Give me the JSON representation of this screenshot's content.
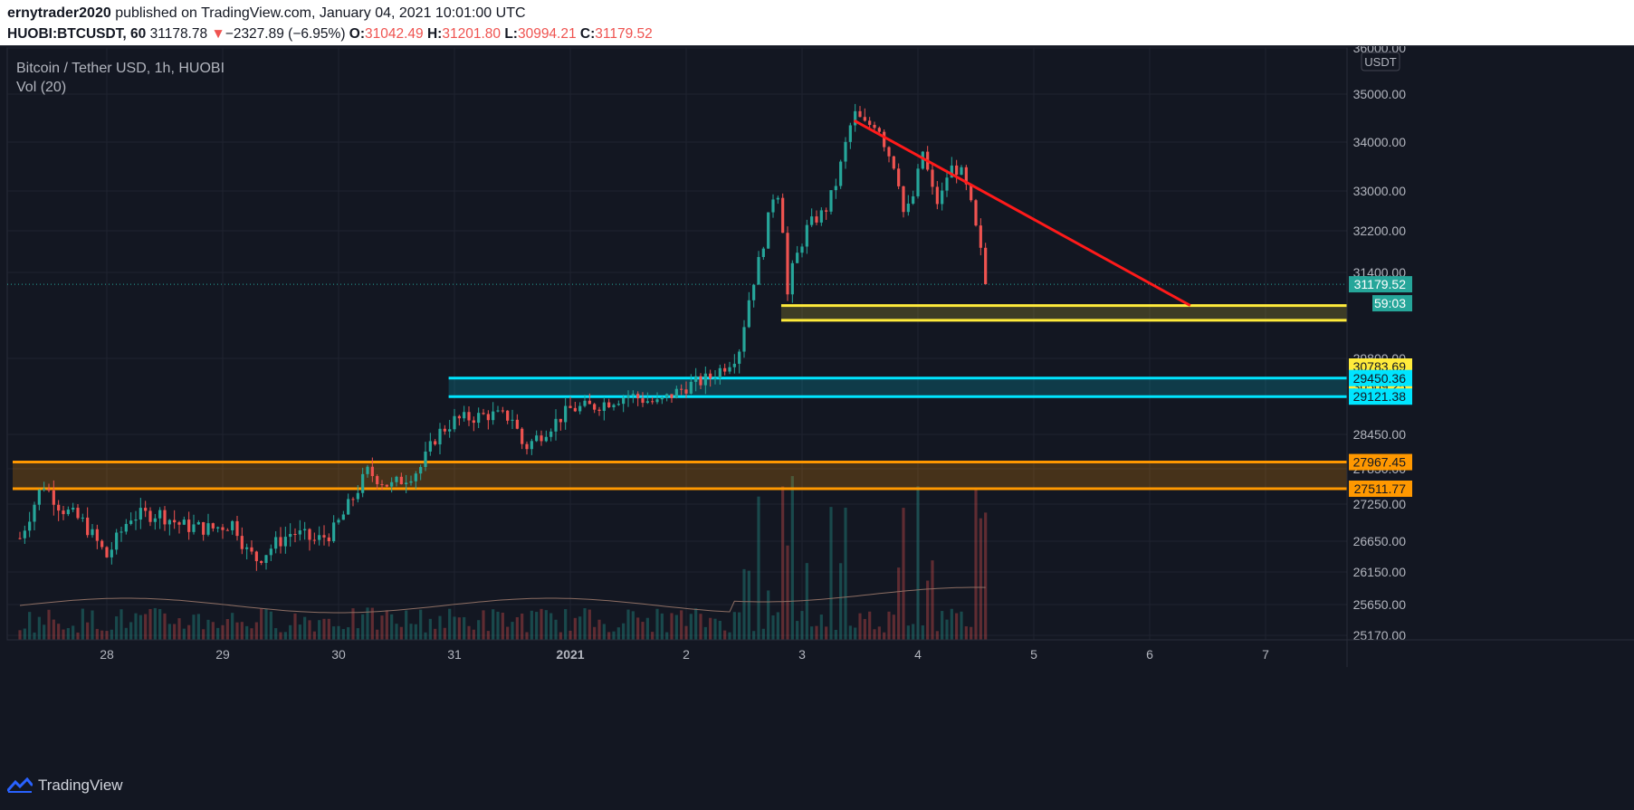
{
  "header": {
    "author": "ernytrader2020",
    "published_text": "published on TradingView.com, January 04, 2021 10:01:00 UTC",
    "symbol": "HUOBI:BTCUSDT, 60",
    "last": "31178.78",
    "change_arrow": "▼",
    "change": "−2327.89 (−6.95%)",
    "open_label": "O:",
    "open": "31042.49",
    "high_label": "H:",
    "high": "31201.80",
    "low_label": "L:",
    "low": "30994.21",
    "close_label": "C:",
    "close": "31179.52"
  },
  "legend": {
    "title": "Bitcoin / Tether USD, 1h, HUOBI",
    "indicator": "Vol (20)"
  },
  "footer": {
    "brand": "TradingView"
  },
  "colors": {
    "background": "#131722",
    "up": "#26a69a",
    "down": "#ef5350",
    "yellow_zone": "#ffeb3b",
    "cyan_zone": "#00e5ff",
    "orange_zone": "#ff9800",
    "trendline": "#ff1a1a"
  },
  "chart_data": {
    "type": "candlestick",
    "title": "Bitcoin / Tether USD, 1h, HUOBI",
    "currency": "USDT",
    "x_ticks": [
      "28",
      "29",
      "30",
      "31",
      "2021",
      "2",
      "3",
      "4",
      "5",
      "6",
      "7"
    ],
    "y_ticks": [
      "36000.00",
      "35000.00",
      "34000.00",
      "33000.00",
      "32200.00",
      "31400.00",
      "29800.00",
      "28450.00",
      "27850.00",
      "27250.00",
      "26650.00",
      "26150.00",
      "25650.00",
      "25170.00"
    ],
    "last_price_label": "31179.52",
    "countdown_label": "59:03",
    "last_price": 31179.52,
    "price_path": [
      [
        27.25,
        26700
      ],
      [
        27.45,
        27600
      ],
      [
        27.6,
        27200
      ],
      [
        27.8,
        26950
      ],
      [
        28.0,
        26400
      ],
      [
        28.2,
        27050
      ],
      [
        28.45,
        27100
      ],
      [
        28.65,
        26900
      ],
      [
        28.9,
        26850
      ],
      [
        29.1,
        26950
      ],
      [
        29.2,
        26500
      ],
      [
        29.3,
        26350
      ],
      [
        29.45,
        26600
      ],
      [
        29.6,
        26800
      ],
      [
        29.8,
        26650
      ],
      [
        29.95,
        26800
      ],
      [
        30.05,
        27100
      ],
      [
        30.25,
        27800
      ],
      [
        30.45,
        27550
      ],
      [
        30.7,
        27850
      ],
      [
        30.85,
        28450
      ],
      [
        31.0,
        28700
      ],
      [
        31.3,
        28800
      ],
      [
        31.5,
        28750
      ],
      [
        31.6,
        28200
      ],
      [
        31.8,
        28550
      ],
      [
        32.0,
        28900
      ],
      [
        32.2,
        28950
      ],
      [
        32.5,
        29150
      ],
      [
        32.75,
        29000
      ],
      [
        33.0,
        29300
      ],
      [
        33.2,
        29450
      ],
      [
        33.35,
        29700
      ],
      [
        33.45,
        29900
      ],
      [
        33.55,
        31000
      ],
      [
        33.65,
        31800
      ],
      [
        33.75,
        32900
      ],
      [
        33.82,
        33000
      ],
      [
        33.86,
        30800
      ],
      [
        33.92,
        31500
      ],
      [
        34.05,
        32300
      ],
      [
        34.2,
        32600
      ],
      [
        34.3,
        33200
      ],
      [
        34.4,
        34200
      ],
      [
        34.45,
        34600
      ],
      [
        34.55,
        34350
      ],
      [
        34.65,
        34400
      ],
      [
        34.72,
        33900
      ],
      [
        34.82,
        33400
      ],
      [
        34.88,
        32500
      ],
      [
        34.95,
        32800
      ],
      [
        35.05,
        33900
      ],
      [
        35.1,
        33150
      ],
      [
        35.18,
        32700
      ],
      [
        35.25,
        33300
      ],
      [
        35.3,
        33500
      ],
      [
        35.38,
        33350
      ],
      [
        35.45,
        32800
      ],
      [
        35.52,
        32000
      ],
      [
        35.58,
        31400
      ],
      [
        35.62,
        31180
      ]
    ],
    "zones": [
      {
        "name": "yellow",
        "upper": 30783.69,
        "lower": 30509.25
      },
      {
        "name": "cyan",
        "upper": 29450.36,
        "lower": 29121.38
      },
      {
        "name": "orange",
        "upper": 27967.45,
        "lower": 27511.77
      }
    ],
    "zone_labels": [
      "30783.69",
      "30509.25",
      "29450.36",
      "29121.38",
      "27967.45",
      "27511.77"
    ],
    "trendline": {
      "from": [
        34.45,
        34450
      ],
      "to": [
        37.35,
        30783.69
      ]
    },
    "volume_indicator": "Vol (20)"
  }
}
